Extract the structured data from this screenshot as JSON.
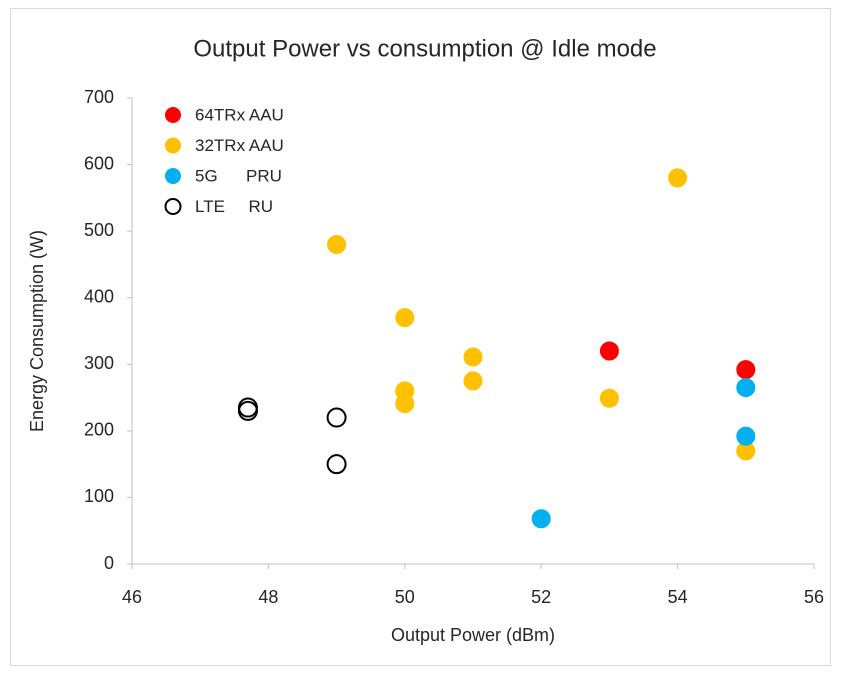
{
  "chart_data": {
    "type": "scatter",
    "title": "Output Power vs consumption @ Idle mode",
    "x_label": "Output Power (dBm)",
    "y_label": "Energy Consumption (W)",
    "xlim": [
      46,
      56
    ],
    "xticks": [
      46,
      48,
      50,
      52,
      54,
      56
    ],
    "ylim": [
      0,
      700
    ],
    "yticks": [
      0,
      100,
      200,
      300,
      400,
      500,
      600,
      700
    ],
    "grid": false,
    "legend": "top-left",
    "series": [
      {
        "name": "64TRx AAU",
        "color": "#ff0000",
        "filled": true,
        "x": [
          53,
          55
        ],
        "values": [
          320,
          292
        ]
      },
      {
        "name": "32TRx AAU",
        "color": "#ffc000",
        "filled": true,
        "x": [
          49,
          50,
          50,
          50,
          51,
          51,
          53,
          54,
          55
        ],
        "values": [
          480,
          370,
          260,
          241,
          311,
          275,
          249,
          580,
          170
        ]
      },
      {
        "name": "5G      PRU",
        "color": "#00b0f0",
        "filled": true,
        "x": [
          52,
          55,
          55
        ],
        "values": [
          68,
          265,
          192
        ]
      },
      {
        "name": "LTE     RU",
        "color": "#000000",
        "filled": false,
        "x": [
          47.7,
          47.7,
          49,
          49
        ],
        "values": [
          235,
          230,
          220,
          150
        ]
      }
    ]
  }
}
